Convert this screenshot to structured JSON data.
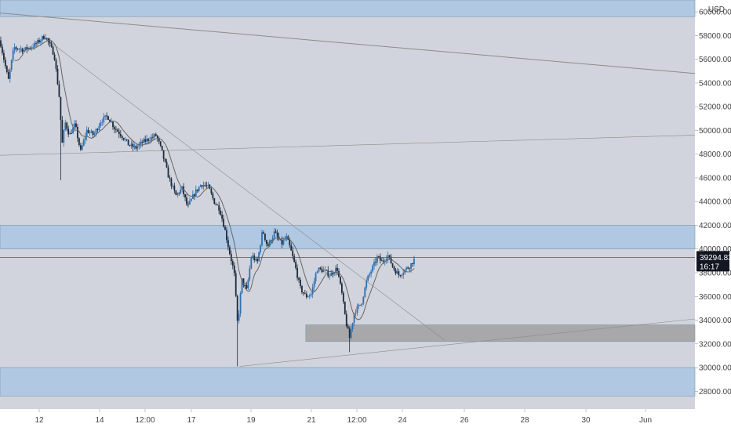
{
  "chart_data": {
    "type": "candlestick",
    "title": "",
    "symbol_currency": "USD",
    "y_axis": {
      "min": 26500,
      "max": 61000,
      "ticks": [
        28000,
        30000,
        32000,
        34000,
        36000,
        38000,
        40000,
        42000,
        44000,
        46000,
        48000,
        50000,
        52000,
        54000,
        56000,
        58000,
        60000
      ],
      "tick_labels": [
        "28000.00",
        "30000.00",
        "32000.00",
        "34000.00",
        "36000.00",
        "38000.00",
        "40000.00",
        "42000.00",
        "44000.00",
        "46000.00",
        "48000.00",
        "50000.00",
        "52000.00",
        "54000.00",
        "56000.00",
        "58000.00",
        "60000.00"
      ]
    },
    "x_axis": {
      "tick_labels": [
        "12",
        "14",
        "12:00",
        "17",
        "19",
        "21",
        "12:00",
        "24",
        "26",
        "28",
        "30",
        "Jun"
      ]
    },
    "current_price": {
      "value": 39294.83,
      "label": "39294.83",
      "countdown": "16:17"
    },
    "colors": {
      "background": "#d1d4dc",
      "zone_blue": "#b0c8e2",
      "zone_gray": "#a8a8aa",
      "candle_up": "#2f6fb0",
      "candle_down": "#1c2a3c",
      "ma_line": "#666666",
      "trend_line": "#8c8c8c",
      "price_tag": "#131722"
    },
    "zones": [
      {
        "kind": "supply",
        "from": 59600,
        "to": 61500
      },
      {
        "kind": "resistance",
        "from": 40000,
        "to": 42000
      },
      {
        "kind": "support",
        "from": 32200,
        "to": 33600,
        "starts_at": 0.44
      },
      {
        "kind": "demand",
        "from": 27600,
        "to": 30000
      }
    ],
    "price_path": [
      [
        0.0,
        57600
      ],
      [
        0.012,
        54200
      ],
      [
        0.02,
        57000
      ],
      [
        0.035,
        56800
      ],
      [
        0.05,
        57200
      ],
      [
        0.065,
        58000
      ],
      [
        0.078,
        56400
      ],
      [
        0.085,
        53000
      ],
      [
        0.09,
        48500
      ],
      [
        0.093,
        50800
      ],
      [
        0.1,
        49600
      ],
      [
        0.108,
        50500
      ],
      [
        0.116,
        48200
      ],
      [
        0.125,
        50000
      ],
      [
        0.135,
        49600
      ],
      [
        0.145,
        50800
      ],
      [
        0.155,
        51200
      ],
      [
        0.165,
        50200
      ],
      [
        0.175,
        49600
      ],
      [
        0.185,
        48800
      ],
      [
        0.195,
        48500
      ],
      [
        0.205,
        49000
      ],
      [
        0.215,
        49300
      ],
      [
        0.225,
        49600
      ],
      [
        0.233,
        48200
      ],
      [
        0.243,
        46000
      ],
      [
        0.253,
        44500
      ],
      [
        0.262,
        45100
      ],
      [
        0.27,
        43500
      ],
      [
        0.28,
        44700
      ],
      [
        0.29,
        45500
      ],
      [
        0.3,
        45200
      ],
      [
        0.308,
        44000
      ],
      [
        0.316,
        43400
      ],
      [
        0.323,
        41800
      ],
      [
        0.33,
        39800
      ],
      [
        0.337,
        38000
      ],
      [
        0.342,
        33500
      ],
      [
        0.348,
        37400
      ],
      [
        0.355,
        36500
      ],
      [
        0.362,
        39500
      ],
      [
        0.37,
        38800
      ],
      [
        0.378,
        41600
      ],
      [
        0.385,
        40200
      ],
      [
        0.395,
        41400
      ],
      [
        0.405,
        40400
      ],
      [
        0.412,
        41000
      ],
      [
        0.418,
        40000
      ],
      [
        0.425,
        38500
      ],
      [
        0.432,
        36700
      ],
      [
        0.44,
        36000
      ],
      [
        0.448,
        36200
      ],
      [
        0.456,
        38300
      ],
      [
        0.465,
        38200
      ],
      [
        0.475,
        37800
      ],
      [
        0.485,
        38400
      ],
      [
        0.492,
        36200
      ],
      [
        0.498,
        33800
      ],
      [
        0.503,
        32500
      ],
      [
        0.51,
        34700
      ],
      [
        0.52,
        35400
      ],
      [
        0.528,
        37400
      ],
      [
        0.536,
        38400
      ],
      [
        0.543,
        39300
      ],
      [
        0.55,
        38900
      ],
      [
        0.558,
        39500
      ],
      [
        0.566,
        38400
      ],
      [
        0.574,
        37800
      ],
      [
        0.582,
        38200
      ],
      [
        0.59,
        38600
      ],
      [
        0.597,
        39200
      ]
    ],
    "spikes": [
      {
        "at": 0.088,
        "low": 45800
      },
      {
        "at": 0.342,
        "low": 30100
      },
      {
        "at": 0.503,
        "low": 31300
      }
    ],
    "trend_lines": [
      {
        "from": [
          0.0,
          59900
        ],
        "to": [
          1.0,
          54800
        ]
      },
      {
        "from": [
          0.0,
          47900
        ],
        "to": [
          1.0,
          49600
        ]
      },
      {
        "from": [
          0.06,
          58000
        ],
        "to": [
          0.64,
          32300
        ]
      },
      {
        "from": [
          0.345,
          30100
        ],
        "to": [
          1.0,
          34100
        ]
      }
    ]
  }
}
